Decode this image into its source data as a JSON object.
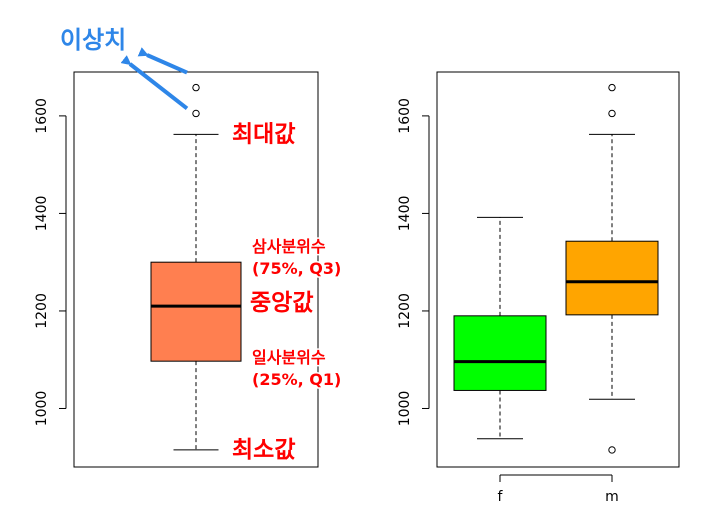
{
  "chart_data": [
    {
      "type": "boxplot",
      "ylim": [
        880,
        1690
      ],
      "ytick_values": [
        1000,
        1200,
        1400,
        1600
      ],
      "ytick_labels": [
        "1000",
        "1200",
        "1400",
        "1600"
      ],
      "box": {
        "whisker_low": 915,
        "q1": 1097,
        "median": 1210,
        "q3": 1300,
        "whisker_high": 1562,
        "outliers": [
          1605,
          1658
        ],
        "fill": "#ff7f50"
      },
      "annotations": {
        "outlier": "이상치",
        "max": "최대값",
        "q3_line1": "삼사분위수",
        "q3_line2": "(75%, Q3)",
        "median": "중앙값",
        "q1_line1": "일사분위수",
        "q1_line2": "(25%, Q1)",
        "min": "최소값"
      },
      "annotation_colors": {
        "text": "#ff0000",
        "outlier_label": "#2e86e8",
        "arrow": "#2e86e8"
      }
    },
    {
      "type": "boxplot",
      "ylim": [
        880,
        1690
      ],
      "ytick_values": [
        1000,
        1200,
        1400,
        1600
      ],
      "ytick_labels": [
        "1000",
        "1200",
        "1400",
        "1600"
      ],
      "categories": [
        "f",
        "m"
      ],
      "boxes": [
        {
          "label": "f",
          "whisker_low": 938,
          "q1": 1037,
          "median": 1096,
          "q3": 1190,
          "whisker_high": 1392,
          "outliers": [],
          "fill": "#00ff00"
        },
        {
          "label": "m",
          "whisker_low": 1019,
          "q1": 1192,
          "median": 1260,
          "q3": 1343,
          "whisker_high": 1562,
          "outliers": [
            915,
            1605,
            1658
          ],
          "fill": "#ffa500"
        }
      ]
    }
  ]
}
